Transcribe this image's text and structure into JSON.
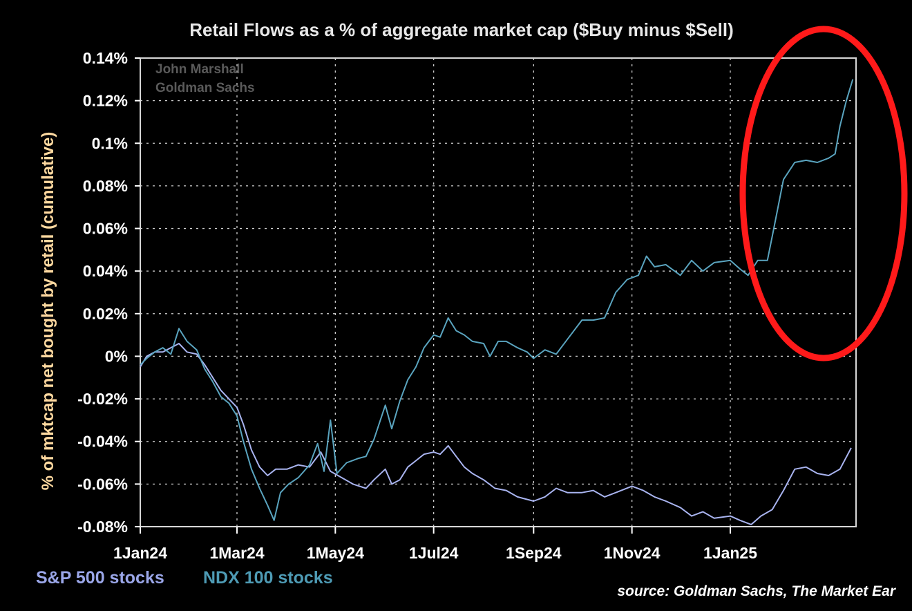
{
  "chart_data": {
    "type": "line",
    "title": "Retail Flows as a % of aggregate market cap ($Buy minus $Sell)",
    "ylabel": "% of mktcap net bought by retail (cumulative)",
    "xlabel": "",
    "ylim": [
      -0.08,
      0.14
    ],
    "yticks": [
      {
        "value": 0.14,
        "label": "0.14%"
      },
      {
        "value": 0.12,
        "label": "0.12%"
      },
      {
        "value": 0.1,
        "label": "0.1%"
      },
      {
        "value": 0.08,
        "label": "0.08%"
      },
      {
        "value": 0.06,
        "label": "0.06%"
      },
      {
        "value": 0.04,
        "label": "0.04%"
      },
      {
        "value": 0.02,
        "label": "0.02%"
      },
      {
        "value": 0.0,
        "label": "0%"
      },
      {
        "value": -0.02,
        "label": "-0.02%"
      },
      {
        "value": -0.04,
        "label": "-0.04%"
      },
      {
        "value": -0.06,
        "label": "-0.06%"
      },
      {
        "value": -0.08,
        "label": "-0.08%"
      }
    ],
    "xlim": [
      "2024-01-01",
      "2025-03-20"
    ],
    "xticks": [
      {
        "date": "2024-01-01",
        "label": "1Jan24"
      },
      {
        "date": "2024-03-01",
        "label": "1Mar24"
      },
      {
        "date": "2024-05-01",
        "label": "1May24"
      },
      {
        "date": "2024-07-01",
        "label": "1Jul24"
      },
      {
        "date": "2024-09-01",
        "label": "1Sep24"
      },
      {
        "date": "2024-11-01",
        "label": "1Nov24"
      },
      {
        "date": "2025-01-01",
        "label": "1Jan25"
      }
    ],
    "grid": true,
    "legend_position": "bottom-left",
    "watermark": [
      "John Marshall",
      "Goldman Sachs"
    ],
    "source": "source: Goldman Sachs, The Market Ear",
    "annotation": "red ellipse highlighting NDX 100 surge in early 2025",
    "series": [
      {
        "name": "S&P 500 stocks",
        "color": "#a9b4f0",
        "points": [
          [
            "2024-01-01",
            -0.005
          ],
          [
            "2024-01-05",
            0.0
          ],
          [
            "2024-01-10",
            0.002
          ],
          [
            "2024-01-15",
            0.002
          ],
          [
            "2024-01-20",
            0.004
          ],
          [
            "2024-01-25",
            0.006
          ],
          [
            "2024-01-30",
            0.002
          ],
          [
            "2024-02-05",
            0.001
          ],
          [
            "2024-02-10",
            -0.004
          ],
          [
            "2024-02-15",
            -0.01
          ],
          [
            "2024-02-20",
            -0.016
          ],
          [
            "2024-02-25",
            -0.02
          ],
          [
            "2024-03-01",
            -0.024
          ],
          [
            "2024-03-05",
            -0.032
          ],
          [
            "2024-03-10",
            -0.044
          ],
          [
            "2024-03-15",
            -0.052
          ],
          [
            "2024-03-20",
            -0.056
          ],
          [
            "2024-03-25",
            -0.053
          ],
          [
            "2024-04-01",
            -0.053
          ],
          [
            "2024-04-08",
            -0.051
          ],
          [
            "2024-04-15",
            -0.052
          ],
          [
            "2024-04-22",
            -0.045
          ],
          [
            "2024-04-28",
            -0.054
          ],
          [
            "2024-05-05",
            -0.057
          ],
          [
            "2024-05-12",
            -0.06
          ],
          [
            "2024-05-20",
            -0.062
          ],
          [
            "2024-05-25",
            -0.058
          ],
          [
            "2024-06-01",
            -0.053
          ],
          [
            "2024-06-05",
            -0.06
          ],
          [
            "2024-06-10",
            -0.058
          ],
          [
            "2024-06-15",
            -0.052
          ],
          [
            "2024-06-20",
            -0.049
          ],
          [
            "2024-06-25",
            -0.046
          ],
          [
            "2024-07-01",
            -0.045
          ],
          [
            "2024-07-05",
            -0.046
          ],
          [
            "2024-07-10",
            -0.042
          ],
          [
            "2024-07-15",
            -0.047
          ],
          [
            "2024-07-20",
            -0.052
          ],
          [
            "2024-07-25",
            -0.055
          ],
          [
            "2024-08-01",
            -0.058
          ],
          [
            "2024-08-08",
            -0.062
          ],
          [
            "2024-08-15",
            -0.063
          ],
          [
            "2024-08-22",
            -0.066
          ],
          [
            "2024-09-01",
            -0.068
          ],
          [
            "2024-09-08",
            -0.066
          ],
          [
            "2024-09-15",
            -0.062
          ],
          [
            "2024-09-22",
            -0.064
          ],
          [
            "2024-10-01",
            -0.064
          ],
          [
            "2024-10-08",
            -0.063
          ],
          [
            "2024-10-15",
            -0.066
          ],
          [
            "2024-10-22",
            -0.064
          ],
          [
            "2024-11-01",
            -0.061
          ],
          [
            "2024-11-08",
            -0.063
          ],
          [
            "2024-11-15",
            -0.066
          ],
          [
            "2024-11-22",
            -0.068
          ],
          [
            "2024-12-01",
            -0.071
          ],
          [
            "2024-12-08",
            -0.075
          ],
          [
            "2024-12-15",
            -0.073
          ],
          [
            "2024-12-22",
            -0.076
          ],
          [
            "2025-01-01",
            -0.075
          ],
          [
            "2025-01-07",
            -0.077
          ],
          [
            "2025-01-14",
            -0.079
          ],
          [
            "2025-01-20",
            -0.075
          ],
          [
            "2025-01-27",
            -0.072
          ],
          [
            "2025-02-03",
            -0.063
          ],
          [
            "2025-02-10",
            -0.053
          ],
          [
            "2025-02-17",
            -0.052
          ],
          [
            "2025-02-24",
            -0.055
          ],
          [
            "2025-03-03",
            -0.056
          ],
          [
            "2025-03-10",
            -0.053
          ],
          [
            "2025-03-17",
            -0.043
          ]
        ]
      },
      {
        "name": "NDX 100 stocks",
        "color": "#5aa4bf",
        "points": [
          [
            "2024-01-01",
            -0.004
          ],
          [
            "2024-01-05",
            -0.001
          ],
          [
            "2024-01-10",
            0.002
          ],
          [
            "2024-01-15",
            0.004
          ],
          [
            "2024-01-20",
            0.001
          ],
          [
            "2024-01-25",
            0.013
          ],
          [
            "2024-01-30",
            0.007
          ],
          [
            "2024-02-05",
            0.003
          ],
          [
            "2024-02-10",
            -0.006
          ],
          [
            "2024-02-15",
            -0.012
          ],
          [
            "2024-02-20",
            -0.019
          ],
          [
            "2024-02-25",
            -0.022
          ],
          [
            "2024-03-01",
            -0.028
          ],
          [
            "2024-03-05",
            -0.04
          ],
          [
            "2024-03-10",
            -0.053
          ],
          [
            "2024-03-15",
            -0.062
          ],
          [
            "2024-03-20",
            -0.07
          ],
          [
            "2024-03-24",
            -0.077
          ],
          [
            "2024-03-28",
            -0.064
          ],
          [
            "2024-04-02",
            -0.06
          ],
          [
            "2024-04-08",
            -0.057
          ],
          [
            "2024-04-15",
            -0.051
          ],
          [
            "2024-04-20",
            -0.041
          ],
          [
            "2024-04-24",
            -0.054
          ],
          [
            "2024-04-28",
            -0.03
          ],
          [
            "2024-05-02",
            -0.055
          ],
          [
            "2024-05-08",
            -0.05
          ],
          [
            "2024-05-15",
            -0.048
          ],
          [
            "2024-05-20",
            -0.047
          ],
          [
            "2024-05-25",
            -0.039
          ],
          [
            "2024-06-01",
            -0.023
          ],
          [
            "2024-06-05",
            -0.034
          ],
          [
            "2024-06-10",
            -0.021
          ],
          [
            "2024-06-15",
            -0.011
          ],
          [
            "2024-06-20",
            -0.005
          ],
          [
            "2024-06-25",
            0.004
          ],
          [
            "2024-07-01",
            0.01
          ],
          [
            "2024-07-05",
            0.009
          ],
          [
            "2024-07-10",
            0.018
          ],
          [
            "2024-07-15",
            0.012
          ],
          [
            "2024-07-20",
            0.01
          ],
          [
            "2024-07-25",
            0.007
          ],
          [
            "2024-08-01",
            0.006
          ],
          [
            "2024-08-05",
            0.0
          ],
          [
            "2024-08-10",
            0.007
          ],
          [
            "2024-08-15",
            0.007
          ],
          [
            "2024-08-22",
            0.004
          ],
          [
            "2024-08-28",
            0.002
          ],
          [
            "2024-09-01",
            -0.001
          ],
          [
            "2024-09-08",
            0.003
          ],
          [
            "2024-09-15",
            0.001
          ],
          [
            "2024-09-22",
            0.008
          ],
          [
            "2024-10-01",
            0.017
          ],
          [
            "2024-10-08",
            0.017
          ],
          [
            "2024-10-15",
            0.018
          ],
          [
            "2024-10-22",
            0.03
          ],
          [
            "2024-10-29",
            0.036
          ],
          [
            "2024-11-05",
            0.038
          ],
          [
            "2024-11-10",
            0.047
          ],
          [
            "2024-11-15",
            0.042
          ],
          [
            "2024-11-22",
            0.043
          ],
          [
            "2024-12-01",
            0.038
          ],
          [
            "2024-12-08",
            0.045
          ],
          [
            "2024-12-15",
            0.04
          ],
          [
            "2024-12-22",
            0.044
          ],
          [
            "2025-01-01",
            0.045
          ],
          [
            "2025-01-07",
            0.041
          ],
          [
            "2025-01-12",
            0.038
          ],
          [
            "2025-01-18",
            0.045
          ],
          [
            "2025-01-24",
            0.045
          ],
          [
            "2025-01-28",
            0.06
          ],
          [
            "2025-02-03",
            0.083
          ],
          [
            "2025-02-10",
            0.091
          ],
          [
            "2025-02-17",
            0.092
          ],
          [
            "2025-02-24",
            0.091
          ],
          [
            "2025-03-03",
            0.093
          ],
          [
            "2025-03-07",
            0.095
          ],
          [
            "2025-03-10",
            0.108
          ],
          [
            "2025-03-14",
            0.12
          ],
          [
            "2025-03-18",
            0.13
          ]
        ]
      }
    ]
  }
}
